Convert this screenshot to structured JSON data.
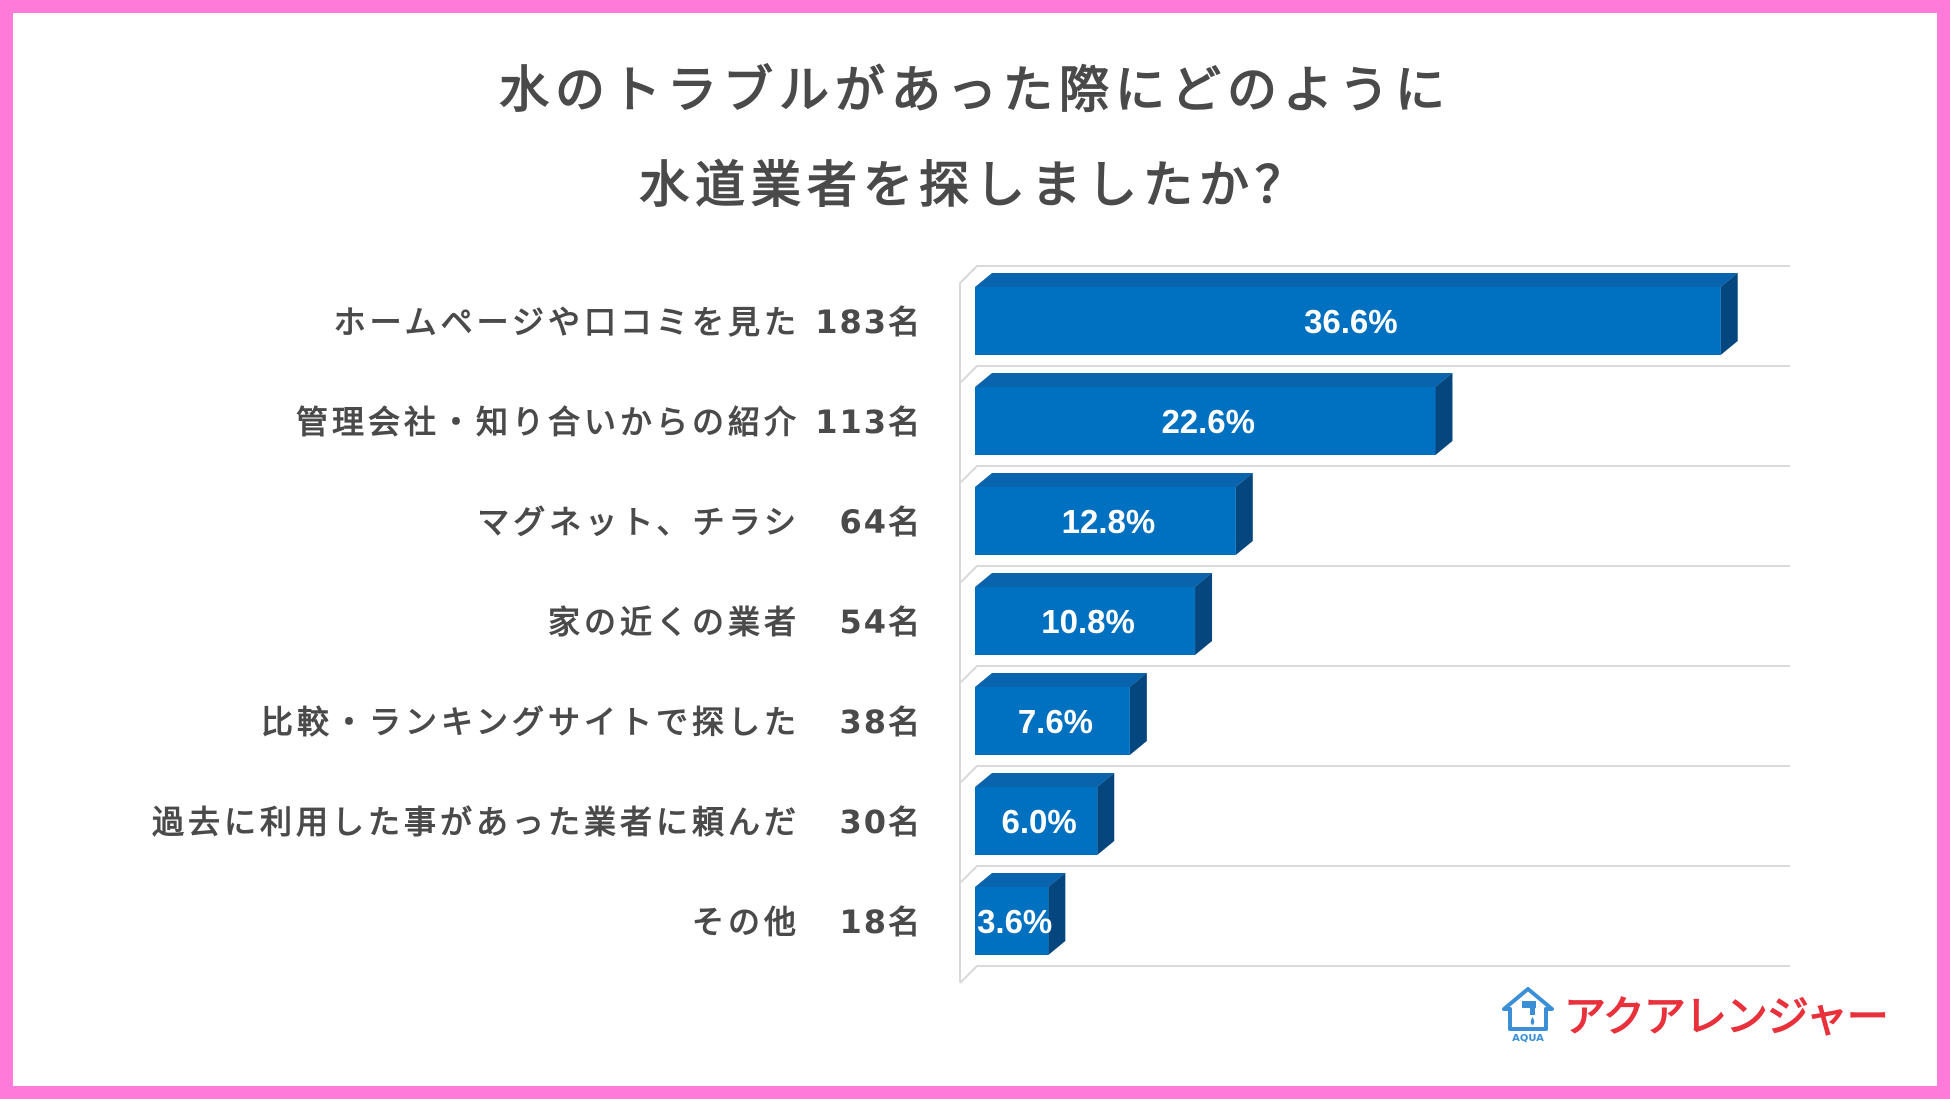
{
  "title": {
    "line1": "水のトラブルがあった際にどのように",
    "line2": "水道業者を探しましたか？"
  },
  "chart_data": {
    "type": "bar",
    "orientation": "horizontal",
    "title": "水のトラブルがあった際にどのように水道業者を探しましたか？",
    "categories": [
      "ホームページや口コミを見た",
      "管理会社・知り合いからの紹介",
      "マグネット、チラシ",
      "家の近くの業者",
      "比較・ランキングサイトで探した",
      "過去に利用した事があった業者に頼んだ",
      "その他"
    ],
    "counts": [
      "183名",
      "113名",
      "64名",
      "54名",
      "38名",
      "30名",
      "18名"
    ],
    "values": [
      36.6,
      22.6,
      12.8,
      10.8,
      7.6,
      6.0,
      3.6
    ],
    "value_labels": [
      "36.6%",
      "22.6%",
      "12.8%",
      "10.8%",
      "7.6%",
      "6.0%",
      "3.6%"
    ],
    "xlim": [
      0,
      40
    ],
    "grid": true,
    "bar_color": "#0070c0",
    "bar_top_color": "#0a64ad",
    "bar_side_color": "#06467e"
  },
  "logo": {
    "text": "アクアレンジャー",
    "sub_text": "AQUA",
    "color": "#e8313a",
    "icon_color": "#3a8fd6"
  },
  "frame_color": "#ff7ad9"
}
